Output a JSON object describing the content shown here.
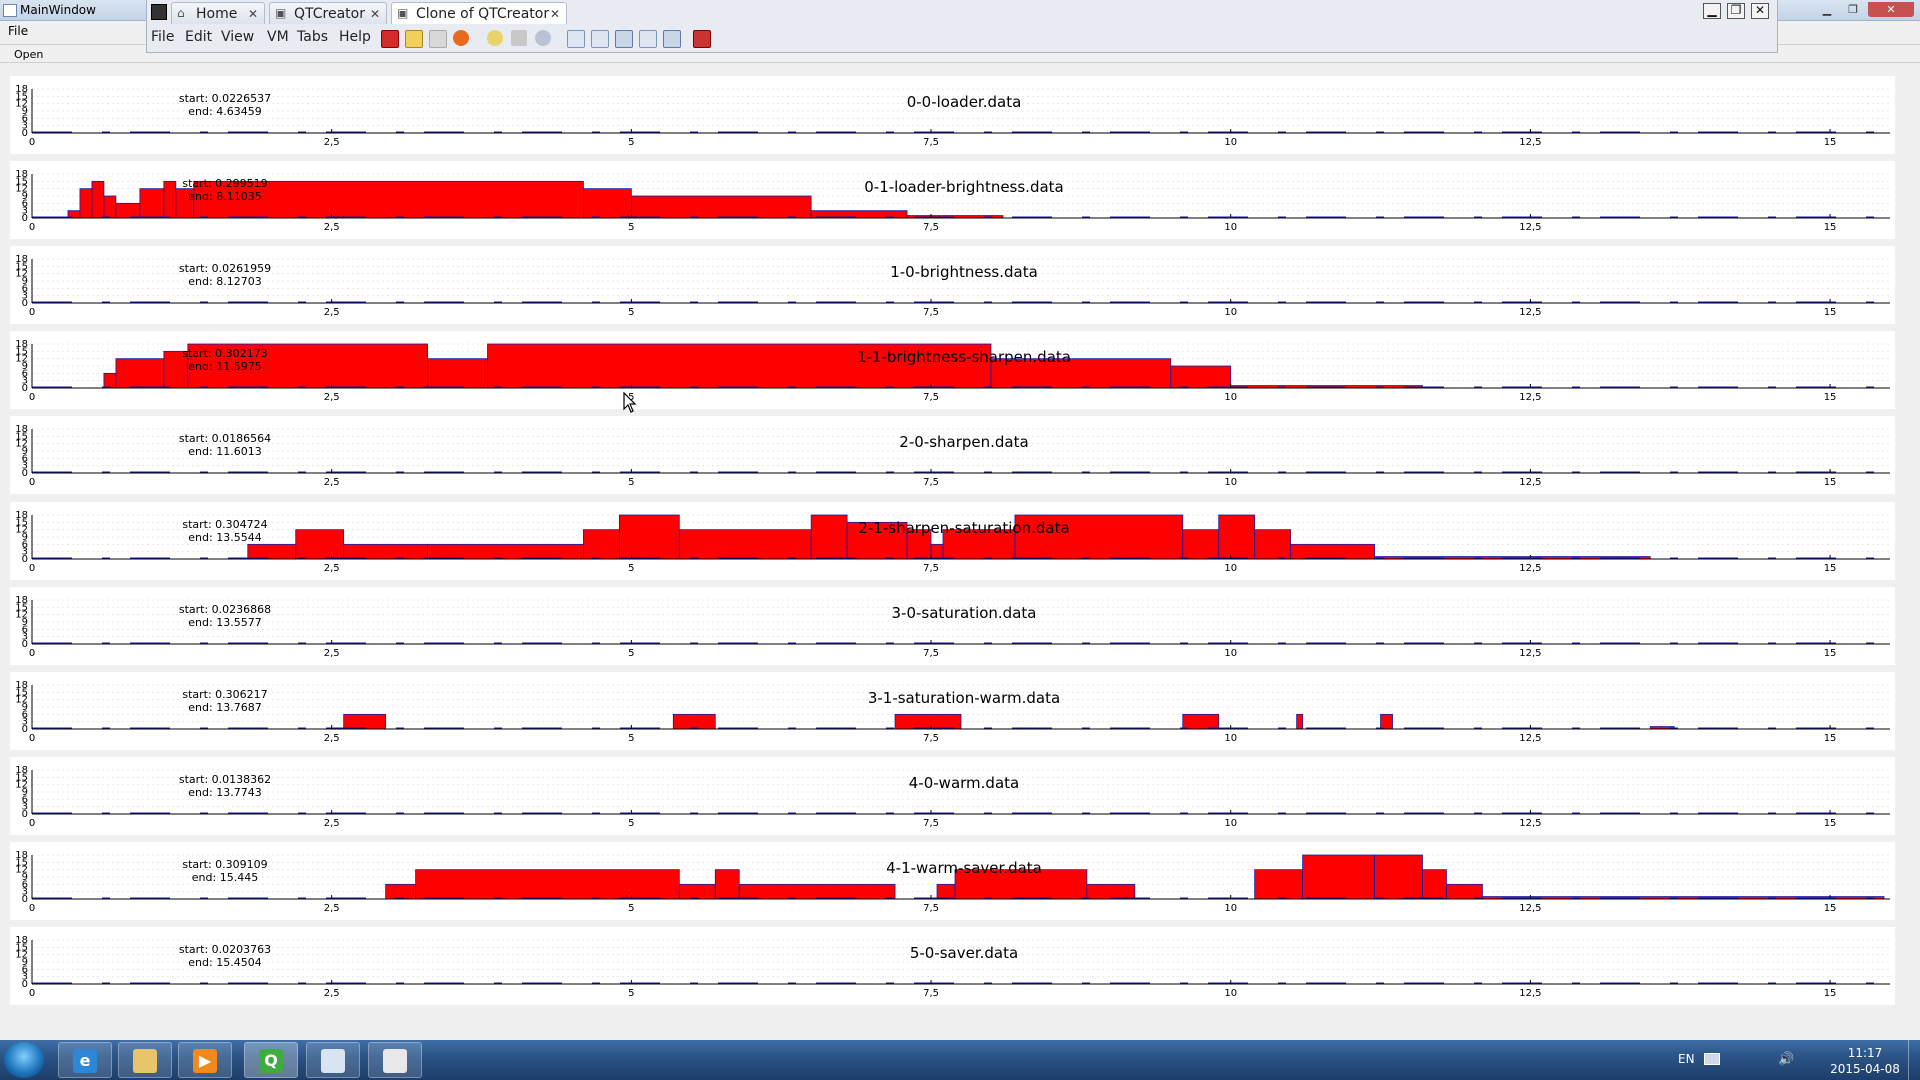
{
  "window": {
    "title": "MainWindow",
    "menu": {
      "file_label": "File"
    },
    "toolbar": {
      "open_label": "Open"
    }
  },
  "vm": {
    "tabs": [
      {
        "label": "Home",
        "icon": "home-icon",
        "active": false
      },
      {
        "label": "QTCreator",
        "icon": "qt-window-icon",
        "active": false
      },
      {
        "label": "Clone of QTCreator",
        "icon": "qt-window-icon",
        "active": true
      }
    ],
    "menus": [
      "File",
      "Edit",
      "View",
      "VM",
      "Tabs",
      "Help"
    ]
  },
  "axis": {
    "x_range": [
      0,
      15.5
    ],
    "x_ticks": [
      "0",
      "2,5",
      "5",
      "7,5",
      "10",
      "12,5",
      "15"
    ],
    "x_tick_values": [
      0,
      2.5,
      5,
      7.5,
      10,
      12.5,
      15
    ],
    "y_ticks": [
      "0",
      "3",
      "6",
      "9",
      "12",
      "15",
      "18"
    ],
    "y_range": [
      0,
      18
    ],
    "fill_color": "#ff0000",
    "line_color": "#1a1aa8"
  },
  "plots": [
    {
      "title": "0-0-loader.data",
      "start": "start: 0.0226537",
      "end": "end: 4.63459",
      "segments": []
    },
    {
      "title": "0-1-loader-brightness.data",
      "start": "start: 0.299519",
      "end": "end: 8.11035",
      "segments": [
        [
          0.3,
          0.4,
          3
        ],
        [
          0.4,
          0.5,
          12
        ],
        [
          0.5,
          0.6,
          15
        ],
        [
          0.6,
          0.7,
          9
        ],
        [
          0.7,
          0.9,
          6
        ],
        [
          0.9,
          1.1,
          12
        ],
        [
          1.1,
          1.2,
          15
        ],
        [
          1.2,
          1.35,
          12
        ],
        [
          1.35,
          4.6,
          15
        ],
        [
          4.6,
          5.0,
          12
        ],
        [
          5.0,
          6.5,
          9
        ],
        [
          6.5,
          7.3,
          3
        ],
        [
          7.3,
          8.1,
          1
        ]
      ]
    },
    {
      "title": "1-0-brightness.data",
      "start": "start: 0.0261959",
      "end": "end: 8.12703",
      "segments": []
    },
    {
      "title": "1-1-brightness-sharpen.data",
      "start": "start: 0.302173",
      "end": "end: 11.5975",
      "segments": [
        [
          0.6,
          0.7,
          6
        ],
        [
          0.7,
          1.1,
          12
        ],
        [
          1.1,
          1.3,
          15
        ],
        [
          1.3,
          3.3,
          18
        ],
        [
          3.3,
          3.8,
          12
        ],
        [
          3.8,
          8.0,
          18
        ],
        [
          8.0,
          9.5,
          12
        ],
        [
          9.5,
          10.0,
          9
        ],
        [
          10.0,
          11.6,
          1
        ]
      ]
    },
    {
      "title": "2-0-sharpen.data",
      "start": "start: 0.0186564",
      "end": "end: 11.6013",
      "segments": []
    },
    {
      "title": "2-1-sharpen-saturation.data",
      "start": "start: 0.304724",
      "end": "end: 13.5544",
      "segments": [
        [
          1.8,
          2.2,
          6
        ],
        [
          2.2,
          2.6,
          12
        ],
        [
          2.6,
          3.3,
          6
        ],
        [
          3.3,
          4.6,
          6
        ],
        [
          4.6,
          4.9,
          12
        ],
        [
          4.9,
          5.4,
          18
        ],
        [
          5.4,
          6.5,
          12
        ],
        [
          6.5,
          6.8,
          18
        ],
        [
          6.8,
          7.3,
          15
        ],
        [
          7.3,
          7.5,
          12
        ],
        [
          7.5,
          7.6,
          6
        ],
        [
          7.6,
          8.2,
          12
        ],
        [
          8.2,
          9.6,
          18
        ],
        [
          9.6,
          9.9,
          12
        ],
        [
          9.9,
          10.2,
          18
        ],
        [
          10.2,
          10.5,
          12
        ],
        [
          10.5,
          11.2,
          6
        ],
        [
          11.2,
          13.5,
          1
        ]
      ]
    },
    {
      "title": "3-0-saturation.data",
      "start": "start: 0.0236868",
      "end": "end: 13.5577",
      "segments": []
    },
    {
      "title": "3-1-saturation-warm.data",
      "start": "start: 0.306217",
      "end": "end: 13.7687",
      "segments": [
        [
          2.6,
          2.95,
          6
        ],
        [
          5.35,
          5.7,
          6
        ],
        [
          7.2,
          7.75,
          6
        ],
        [
          9.6,
          9.9,
          6
        ],
        [
          10.55,
          10.6,
          6
        ],
        [
          11.25,
          11.35,
          6
        ],
        [
          13.5,
          13.7,
          1
        ]
      ]
    },
    {
      "title": "4-0-warm.data",
      "start": "start: 0.0138362",
      "end": "end: 13.7743",
      "segments": []
    },
    {
      "title": "4-1-warm-saver.data",
      "start": "start: 0.309109",
      "end": "end: 15.445",
      "segments": [
        [
          2.95,
          3.2,
          6
        ],
        [
          3.2,
          5.4,
          12
        ],
        [
          5.4,
          5.7,
          6
        ],
        [
          5.7,
          5.9,
          12
        ],
        [
          5.9,
          7.2,
          6
        ],
        [
          7.55,
          7.7,
          6
        ],
        [
          7.7,
          8.8,
          12
        ],
        [
          8.8,
          9.2,
          6
        ],
        [
          10.2,
          10.6,
          12
        ],
        [
          10.6,
          11.2,
          18
        ],
        [
          11.2,
          11.6,
          18
        ],
        [
          11.6,
          11.8,
          12
        ],
        [
          11.8,
          12.1,
          6
        ],
        [
          12.1,
          15.45,
          1
        ]
      ]
    },
    {
      "title": "5-0-saver.data",
      "start": "start: 0.0203763",
      "end": "end: 15.4504",
      "segments": []
    }
  ],
  "taskbar": {
    "lang": "EN",
    "time": "11:17",
    "date": "2015-04-08",
    "apps": [
      {
        "icon": "internet-explorer-icon"
      },
      {
        "icon": "file-explorer-icon"
      },
      {
        "icon": "media-player-icon"
      },
      {
        "icon": "qt-creator-icon"
      },
      {
        "icon": "picture-viewer-icon"
      },
      {
        "icon": "app-window-icon"
      }
    ]
  }
}
